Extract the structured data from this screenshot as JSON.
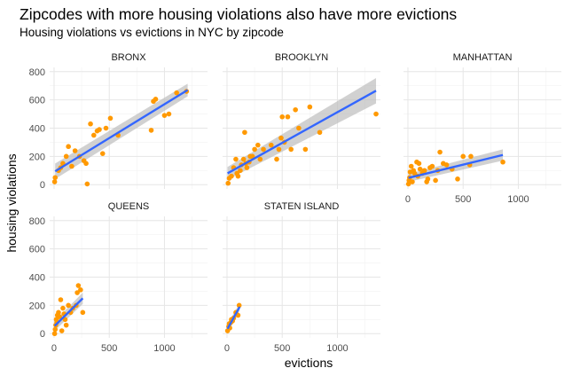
{
  "title": "Zipcodes with more housing violations also have more evictions",
  "subtitle": "Housing violations vs evictions in NYC by zipcode",
  "chart_data": {
    "type": "scatter",
    "facet_by": "borough",
    "xlabel": "evictions",
    "ylabel": "housing violations",
    "xlim": [
      -40,
      1390
    ],
    "ylim": [
      -30,
      830
    ],
    "x_ticks": [
      0,
      500,
      1000
    ],
    "y_ticks": [
      0,
      200,
      400,
      600,
      800
    ],
    "point_color": "#ff9900",
    "trend_color": "#3366ff",
    "band_color": "#bdbdbd",
    "grid": true,
    "panels": [
      {
        "name": "BRONX",
        "fit": {
          "x": [
            10,
            1210
          ],
          "y": [
            95,
            670
          ],
          "lower": [
            40,
            625
          ],
          "upper": [
            150,
            715
          ]
        },
        "points": [
          [
            5,
            20
          ],
          [
            10,
            50
          ],
          [
            40,
            100
          ],
          [
            60,
            120
          ],
          [
            80,
            150
          ],
          [
            110,
            200
          ],
          [
            130,
            270
          ],
          [
            160,
            130
          ],
          [
            190,
            240
          ],
          [
            230,
            200
          ],
          [
            270,
            170
          ],
          [
            290,
            150
          ],
          [
            300,
            5
          ],
          [
            330,
            430
          ],
          [
            360,
            350
          ],
          [
            390,
            380
          ],
          [
            410,
            390
          ],
          [
            440,
            220
          ],
          [
            470,
            400
          ],
          [
            510,
            470
          ],
          [
            580,
            350
          ],
          [
            880,
            385
          ],
          [
            900,
            590
          ],
          [
            920,
            605
          ],
          [
            1000,
            490
          ],
          [
            1040,
            500
          ],
          [
            1110,
            650
          ],
          [
            1200,
            660
          ]
        ]
      },
      {
        "name": "BROOKLYN",
        "fit": {
          "x": [
            5,
            1350
          ],
          "y": [
            80,
            665
          ],
          "lower": [
            35,
            575
          ],
          "upper": [
            125,
            755
          ]
        },
        "points": [
          [
            10,
            10
          ],
          [
            20,
            45
          ],
          [
            40,
            60
          ],
          [
            60,
            120
          ],
          [
            80,
            180
          ],
          [
            90,
            80
          ],
          [
            100,
            60
          ],
          [
            120,
            100
          ],
          [
            130,
            140
          ],
          [
            150,
            180
          ],
          [
            160,
            370
          ],
          [
            170,
            150
          ],
          [
            180,
            120
          ],
          [
            200,
            160
          ],
          [
            210,
            200
          ],
          [
            230,
            200
          ],
          [
            250,
            250
          ],
          [
            280,
            280
          ],
          [
            300,
            180
          ],
          [
            330,
            250
          ],
          [
            400,
            280
          ],
          [
            450,
            180
          ],
          [
            470,
            250
          ],
          [
            490,
            330
          ],
          [
            500,
            480
          ],
          [
            520,
            300
          ],
          [
            550,
            480
          ],
          [
            580,
            250
          ],
          [
            620,
            530
          ],
          [
            650,
            400
          ],
          [
            710,
            250
          ],
          [
            750,
            550
          ],
          [
            840,
            370
          ],
          [
            1350,
            500
          ]
        ]
      },
      {
        "name": "MANHATTAN",
        "fit": {
          "x": [
            5,
            860
          ],
          "y": [
            48,
            210
          ],
          "lower": [
            20,
            170
          ],
          "upper": [
            76,
            250
          ]
        },
        "points": [
          [
            5,
            5
          ],
          [
            10,
            30
          ],
          [
            15,
            50
          ],
          [
            20,
            90
          ],
          [
            30,
            130
          ],
          [
            40,
            20
          ],
          [
            50,
            100
          ],
          [
            60,
            80
          ],
          [
            80,
            160
          ],
          [
            90,
            60
          ],
          [
            100,
            150
          ],
          [
            110,
            110
          ],
          [
            130,
            80
          ],
          [
            150,
            100
          ],
          [
            170,
            20
          ],
          [
            180,
            40
          ],
          [
            200,
            120
          ],
          [
            220,
            130
          ],
          [
            250,
            30
          ],
          [
            270,
            100
          ],
          [
            290,
            230
          ],
          [
            320,
            150
          ],
          [
            350,
            140
          ],
          [
            400,
            110
          ],
          [
            450,
            40
          ],
          [
            500,
            200
          ],
          [
            560,
            140
          ],
          [
            570,
            200
          ],
          [
            860,
            160
          ]
        ]
      },
      {
        "name": "QUEENS",
        "fit": {
          "x": [
            5,
            260
          ],
          "y": [
            55,
            250
          ],
          "lower": [
            20,
            210
          ],
          "upper": [
            90,
            290
          ]
        },
        "points": [
          [
            5,
            0
          ],
          [
            10,
            30
          ],
          [
            15,
            60
          ],
          [
            20,
            100
          ],
          [
            25,
            80
          ],
          [
            30,
            130
          ],
          [
            40,
            150
          ],
          [
            50,
            120
          ],
          [
            60,
            240
          ],
          [
            70,
            20
          ],
          [
            80,
            180
          ],
          [
            90,
            140
          ],
          [
            100,
            100
          ],
          [
            110,
            60
          ],
          [
            130,
            200
          ],
          [
            150,
            150
          ],
          [
            170,
            180
          ],
          [
            200,
            200
          ],
          [
            210,
            290
          ],
          [
            220,
            340
          ],
          [
            240,
            310
          ],
          [
            260,
            150
          ]
        ]
      },
      {
        "name": "STATEN ISLAND",
        "fit": {
          "x": [
            5,
            115
          ],
          "y": [
            35,
            190
          ],
          "lower": [
            0,
            165
          ],
          "upper": [
            70,
            215
          ]
        },
        "points": [
          [
            5,
            20
          ],
          [
            15,
            50
          ],
          [
            20,
            70
          ],
          [
            25,
            40
          ],
          [
            35,
            80
          ],
          [
            40,
            100
          ],
          [
            50,
            90
          ],
          [
            60,
            110
          ],
          [
            80,
            150
          ],
          [
            100,
            130
          ],
          [
            110,
            200
          ]
        ]
      }
    ]
  }
}
